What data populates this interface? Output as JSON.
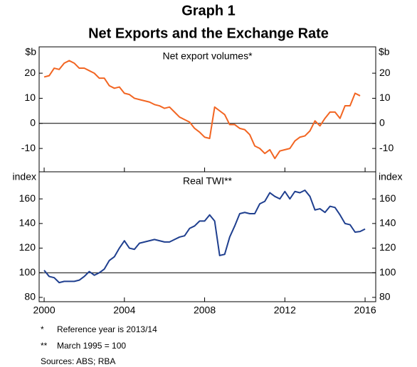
{
  "title": "Graph 1",
  "subtitle": "Net Exports and the Exchange Rate",
  "notes": [
    [
      "*",
      "Reference year is 2013/14"
    ],
    [
      "**",
      "March 1995 = 100"
    ]
  ],
  "sources": "Sources: ABS; RBA",
  "chart_data": [
    {
      "type": "line",
      "title": "Net export volumes*",
      "y_label": "$b",
      "xlim": [
        1999.75,
        2016.53
      ],
      "xticks": [
        2000,
        2004,
        2008,
        2012,
        2016
      ],
      "ylim": [
        -19.3,
        30.5
      ],
      "yticks": [
        -10,
        0,
        10,
        20
      ],
      "reference_line": 0,
      "x": [
        2000,
        2000.25,
        2000.5,
        2000.75,
        2001,
        2001.25,
        2001.5,
        2001.75,
        2002,
        2002.25,
        2002.5,
        2002.75,
        2003,
        2003.25,
        2003.5,
        2003.75,
        2004,
        2004.25,
        2004.5,
        2004.75,
        2005,
        2005.25,
        2005.5,
        2005.75,
        2006,
        2006.25,
        2006.5,
        2006.75,
        2007,
        2007.25,
        2007.5,
        2007.75,
        2008,
        2008.25,
        2008.5,
        2008.75,
        2009,
        2009.25,
        2009.5,
        2009.75,
        2010,
        2010.25,
        2010.5,
        2010.75,
        2011,
        2011.25,
        2011.5,
        2011.75,
        2012,
        2012.25,
        2012.5,
        2012.75,
        2013,
        2013.25,
        2013.5,
        2013.75,
        2014,
        2014.25,
        2014.5,
        2014.75,
        2015,
        2015.25,
        2015.5,
        2015.75
      ],
      "series": [
        {
          "color": "#f26522",
          "values": [
            18.5,
            19,
            22,
            21.5,
            24,
            25,
            24,
            22,
            22,
            21,
            20,
            18,
            18,
            15,
            14,
            14.5,
            12,
            11.5,
            10,
            9.5,
            9,
            8.5,
            7.5,
            7,
            6,
            6.5,
            4.5,
            2.5,
            1.5,
            0.5,
            -2,
            -3.5,
            -5.5,
            -6,
            6.5,
            5,
            3.5,
            -0.5,
            -0.5,
            -2,
            -2.5,
            -4.5,
            -9,
            -10,
            -12,
            -10.5,
            -14,
            -11,
            -10.5,
            -10,
            -7,
            -5.5,
            -5,
            -3,
            1,
            -1,
            2,
            4.5,
            4.5,
            2,
            7,
            7,
            12,
            11
          ]
        }
      ]
    },
    {
      "type": "line",
      "title": "Real TWI**",
      "y_label": "index",
      "xlim": [
        1999.75,
        2016.53
      ],
      "xticks": [
        2000,
        2004,
        2008,
        2012,
        2016
      ],
      "ylim": [
        76.5,
        182
      ],
      "yticks": [
        80,
        100,
        120,
        140,
        160
      ],
      "reference_line": 100,
      "x": [
        2000,
        2000.25,
        2000.5,
        2000.75,
        2001,
        2001.25,
        2001.5,
        2001.75,
        2002,
        2002.25,
        2002.5,
        2002.75,
        2003,
        2003.25,
        2003.5,
        2003.75,
        2004,
        2004.25,
        2004.5,
        2004.75,
        2005,
        2005.25,
        2005.5,
        2005.75,
        2006,
        2006.25,
        2006.5,
        2006.75,
        2007,
        2007.25,
        2007.5,
        2007.75,
        2008,
        2008.25,
        2008.5,
        2008.75,
        2009,
        2009.25,
        2009.5,
        2009.75,
        2010,
        2010.25,
        2010.5,
        2010.75,
        2011,
        2011.25,
        2011.5,
        2011.75,
        2012,
        2012.25,
        2012.5,
        2012.75,
        2013,
        2013.25,
        2013.5,
        2013.75,
        2014,
        2014.25,
        2014.5,
        2014.75,
        2015,
        2015.25,
        2015.5,
        2015.75,
        2016
      ],
      "series": [
        {
          "color": "#1f3f8f",
          "values": [
            102,
            97,
            96,
            92,
            93,
            93,
            93,
            94,
            97,
            101,
            98,
            100,
            103,
            110,
            113,
            120,
            126,
            120,
            119,
            124,
            125,
            126,
            127,
            126,
            125,
            125,
            127,
            129,
            130,
            136,
            138,
            142,
            142,
            147,
            142,
            114,
            115,
            129,
            138,
            148,
            149,
            148,
            148,
            156,
            158,
            165,
            162,
            160,
            166,
            160,
            166,
            165,
            167,
            162,
            151,
            152,
            149,
            154,
            153,
            147,
            140,
            139,
            133,
            133.5,
            135.5
          ]
        }
      ]
    }
  ]
}
